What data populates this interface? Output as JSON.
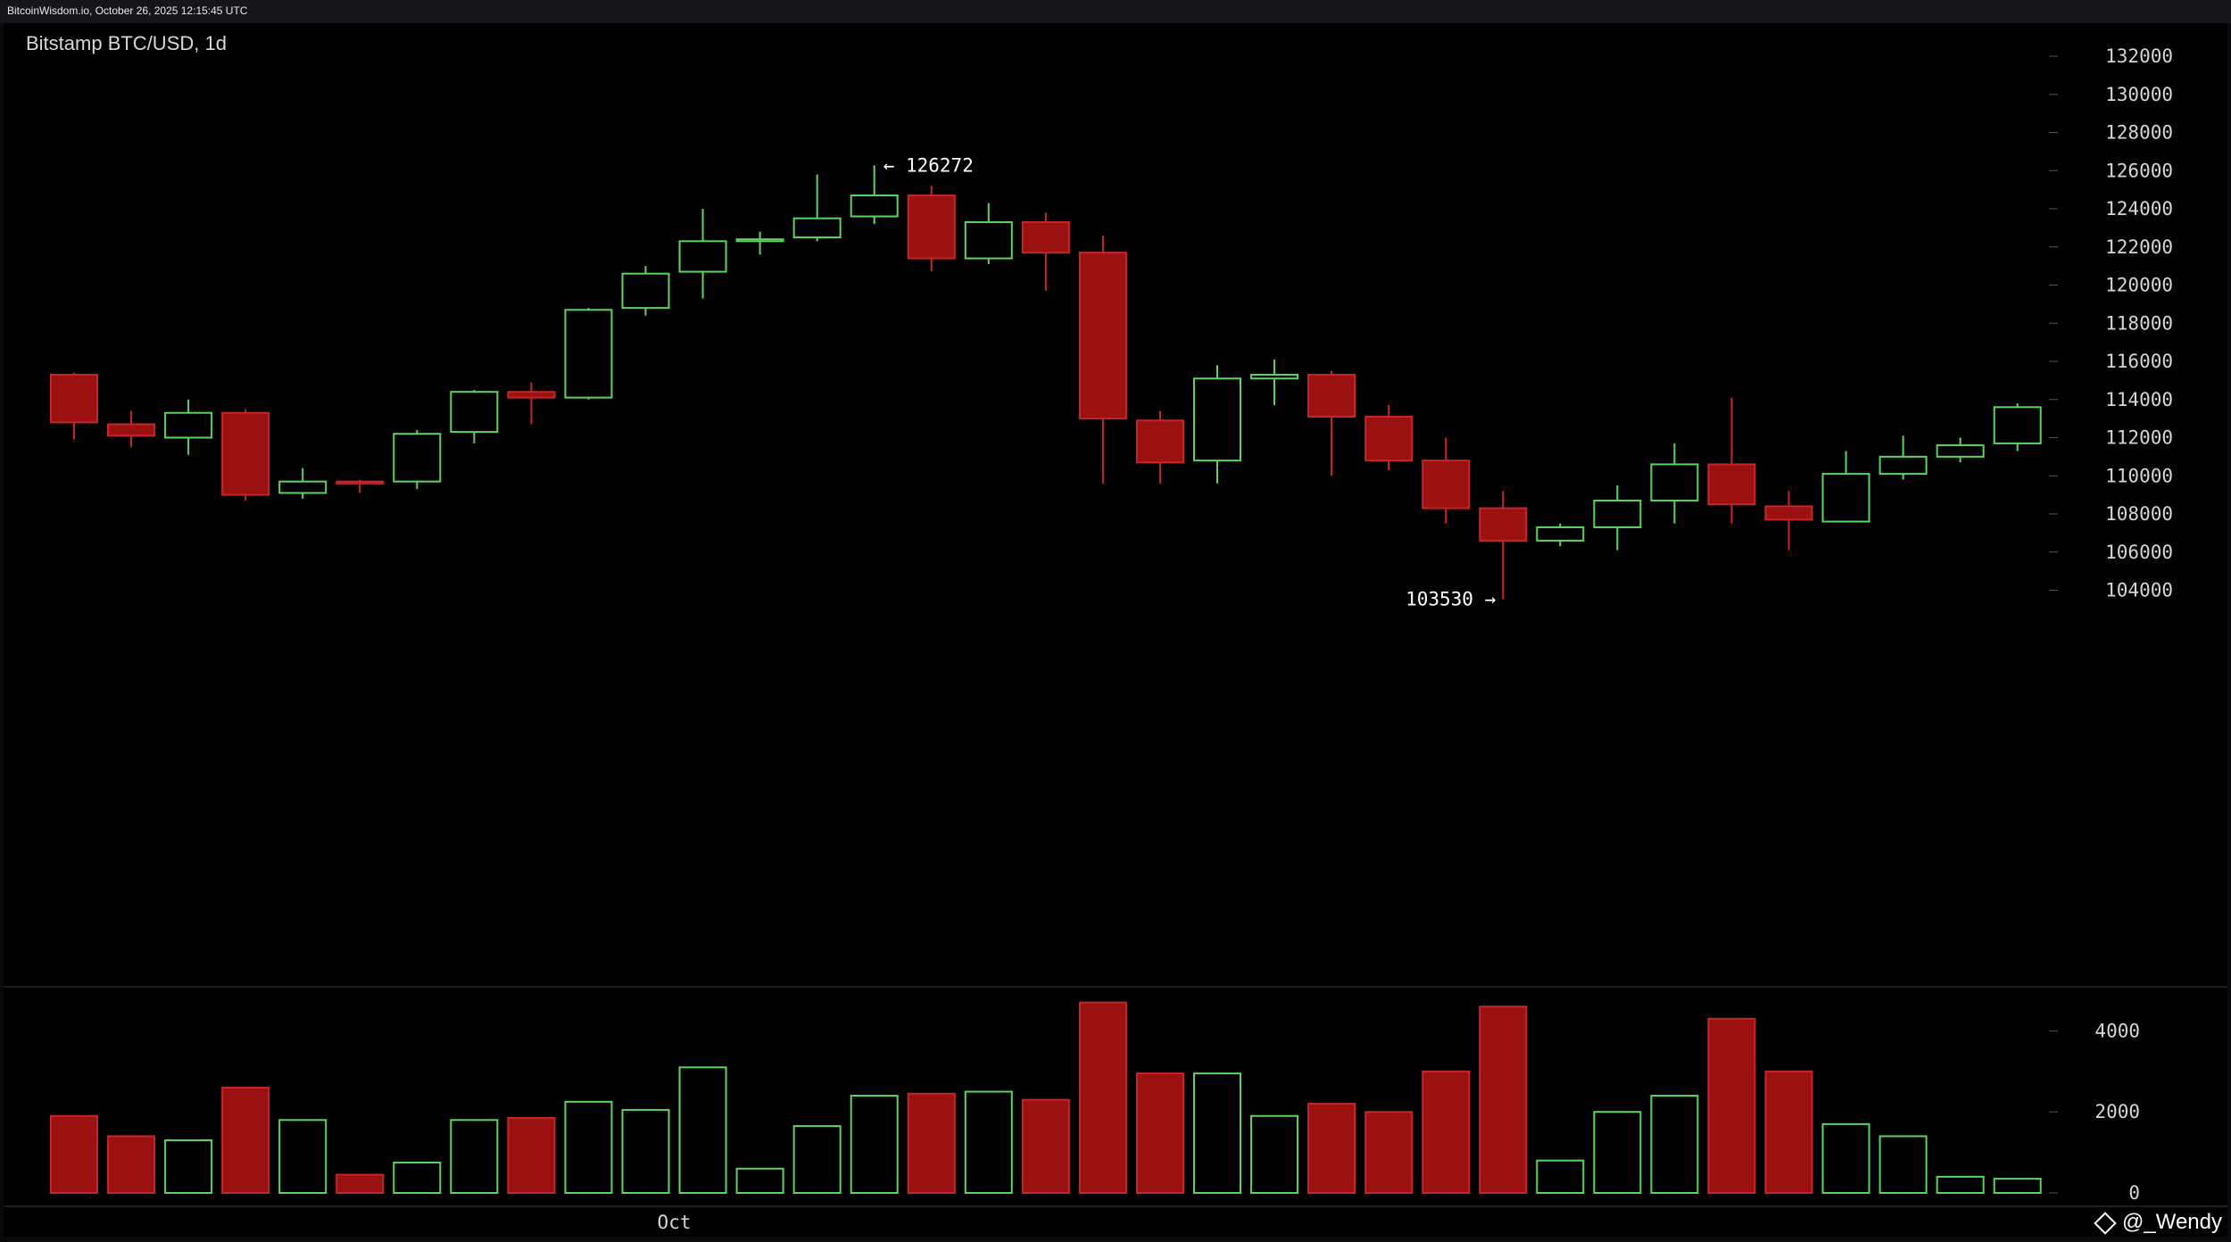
{
  "header": {
    "source_line": "BitcoinWisdom.io, October 26, 2025 12:15:45 UTC"
  },
  "chart_data": {
    "type": "candlestick",
    "title": "Bitstamp BTC/USD, 1d",
    "x_tick_labels": [
      {
        "index": 10.5,
        "label": "Oct"
      }
    ],
    "price_axis": {
      "ticks": [
        104000,
        106000,
        108000,
        110000,
        112000,
        114000,
        116000,
        118000,
        120000,
        122000,
        124000,
        126000,
        128000,
        130000,
        132000
      ]
    },
    "volume_axis": {
      "ticks": [
        0,
        2000,
        4000
      ]
    },
    "colors": {
      "up": "#5fd35f",
      "down": "#9b1010",
      "down_outline": "#c4262a",
      "axis": "#555555"
    },
    "annotations": [
      {
        "label": "← 126272",
        "index": 14,
        "value": 126272,
        "side": "right"
      },
      {
        "label": "103530 →",
        "index": 25,
        "value": 103530,
        "side": "left"
      }
    ],
    "candles": [
      {
        "o": 115300,
        "h": 115400,
        "l": 111900,
        "c": 112800,
        "v": 1900
      },
      {
        "o": 112700,
        "h": 113400,
        "l": 111500,
        "c": 112100,
        "v": 1400
      },
      {
        "o": 112000,
        "h": 114000,
        "l": 111100,
        "c": 113300,
        "v": 1300
      },
      {
        "o": 113300,
        "h": 113500,
        "l": 108700,
        "c": 109000,
        "v": 2600
      },
      {
        "o": 109100,
        "h": 110400,
        "l": 108800,
        "c": 109700,
        "v": 1800
      },
      {
        "o": 109700,
        "h": 109800,
        "l": 109100,
        "c": 109600,
        "v": 450
      },
      {
        "o": 109700,
        "h": 112400,
        "l": 109300,
        "c": 112200,
        "v": 750
      },
      {
        "o": 112300,
        "h": 114500,
        "l": 111700,
        "c": 114400,
        "v": 1800
      },
      {
        "o": 114400,
        "h": 114900,
        "l": 112700,
        "c": 114100,
        "v": 1850
      },
      {
        "o": 114100,
        "h": 118800,
        "l": 114000,
        "c": 118700,
        "v": 2250
      },
      {
        "o": 118800,
        "h": 121000,
        "l": 118400,
        "c": 120600,
        "v": 2050
      },
      {
        "o": 120700,
        "h": 124000,
        "l": 119300,
        "c": 122300,
        "v": 3100
      },
      {
        "o": 122300,
        "h": 122800,
        "l": 121600,
        "c": 122400,
        "v": 600
      },
      {
        "o": 122500,
        "h": 125800,
        "l": 122300,
        "c": 123500,
        "v": 1650
      },
      {
        "o": 123600,
        "h": 126272,
        "l": 123200,
        "c": 124700,
        "v": 2400
      },
      {
        "o": 124700,
        "h": 125200,
        "l": 120700,
        "c": 121400,
        "v": 2450
      },
      {
        "o": 121400,
        "h": 124300,
        "l": 121100,
        "c": 123300,
        "v": 2500
      },
      {
        "o": 123300,
        "h": 123800,
        "l": 119700,
        "c": 121700,
        "v": 2300
      },
      {
        "o": 121700,
        "h": 122600,
        "l": 109600,
        "c": 113000,
        "v": 4700
      },
      {
        "o": 112900,
        "h": 113400,
        "l": 109600,
        "c": 110700,
        "v": 2950
      },
      {
        "o": 110800,
        "h": 115800,
        "l": 109600,
        "c": 115100,
        "v": 2950
      },
      {
        "o": 115100,
        "h": 116100,
        "l": 113700,
        "c": 115300,
        "v": 1900
      },
      {
        "o": 115300,
        "h": 115500,
        "l": 110000,
        "c": 113100,
        "v": 2200
      },
      {
        "o": 113100,
        "h": 113700,
        "l": 110300,
        "c": 110800,
        "v": 2000
      },
      {
        "o": 110800,
        "h": 112000,
        "l": 107500,
        "c": 108300,
        "v": 3000
      },
      {
        "o": 108300,
        "h": 109200,
        "l": 103530,
        "c": 106600,
        "v": 4600
      },
      {
        "o": 106600,
        "h": 107500,
        "l": 106300,
        "c": 107300,
        "v": 800
      },
      {
        "o": 107300,
        "h": 109500,
        "l": 106100,
        "c": 108700,
        "v": 2000
      },
      {
        "o": 108700,
        "h": 111700,
        "l": 107500,
        "c": 110600,
        "v": 2400
      },
      {
        "o": 110600,
        "h": 114100,
        "l": 107500,
        "c": 108500,
        "v": 4300
      },
      {
        "o": 108400,
        "h": 109200,
        "l": 106100,
        "c": 107700,
        "v": 3000
      },
      {
        "o": 107600,
        "h": 111300,
        "l": 107600,
        "c": 110100,
        "v": 1700
      },
      {
        "o": 110100,
        "h": 112100,
        "l": 109800,
        "c": 111000,
        "v": 1400
      },
      {
        "o": 111000,
        "h": 112000,
        "l": 110700,
        "c": 111600,
        "v": 400
      },
      {
        "o": 111700,
        "h": 113800,
        "l": 111300,
        "c": 113600,
        "v": 350
      }
    ]
  },
  "watermark": {
    "text": "@_Wendy",
    "icon": "diamond-logo-icon"
  }
}
